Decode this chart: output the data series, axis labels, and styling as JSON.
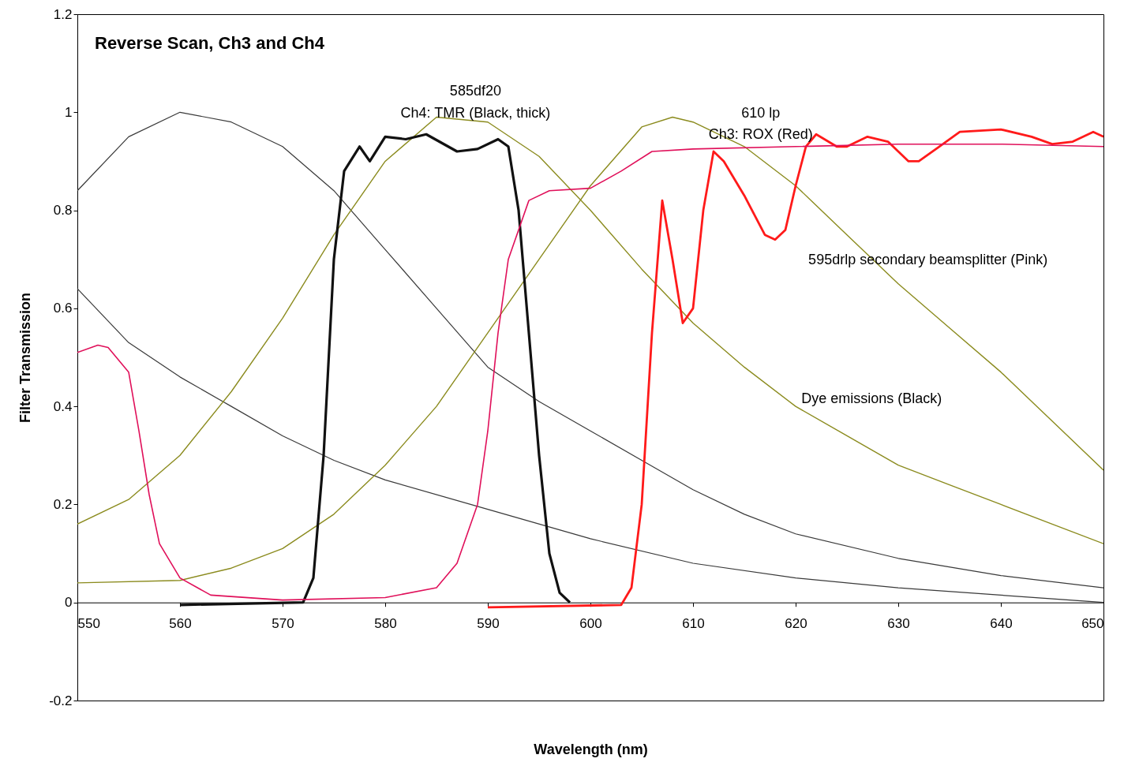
{
  "chart_data": {
    "type": "line",
    "title": "Reverse Scan, Ch3 and Ch4",
    "xlabel": "Wavelength (nm)",
    "ylabel": "Filter Transmission",
    "xlim": [
      550,
      650
    ],
    "ylim": [
      -0.2,
      1.2
    ],
    "xticks": [
      550,
      560,
      570,
      580,
      590,
      600,
      610,
      620,
      630,
      640,
      650
    ],
    "yticks": [
      -0.2,
      0,
      0.2,
      0.4,
      0.6,
      0.8,
      1,
      1.2
    ],
    "grid": false,
    "marker": "none",
    "line_style": "solid",
    "series": [
      {
        "color": "#3a3a3a",
        "x": [
          550,
          555,
          560,
          565,
          570,
          575,
          580,
          585,
          590,
          595,
          600,
          605,
          610,
          615,
          620,
          630,
          640,
          650
        ],
        "values": [
          0.84,
          0.95,
          1.0,
          0.98,
          0.93,
          0.84,
          0.72,
          0.6,
          0.48,
          0.41,
          0.35,
          0.29,
          0.23,
          0.18,
          0.14,
          0.09,
          0.055,
          0.03
        ]
      },
      {
        "color": "#3a3a3a",
        "x": [
          550,
          555,
          560,
          565,
          570,
          575,
          580,
          590,
          600,
          610,
          620,
          630,
          640,
          650
        ],
        "values": [
          0.64,
          0.53,
          0.46,
          0.4,
          0.34,
          0.29,
          0.25,
          0.19,
          0.13,
          0.08,
          0.05,
          0.03,
          0.015,
          0.0
        ]
      },
      {
        "color": "#8b8b1e",
        "x": [
          550,
          555,
          560,
          565,
          570,
          575,
          580,
          585,
          590,
          595,
          600,
          605,
          610,
          615,
          620,
          625,
          630,
          635,
          640,
          645,
          650
        ],
        "values": [
          0.16,
          0.21,
          0.3,
          0.43,
          0.58,
          0.75,
          0.9,
          0.99,
          0.98,
          0.91,
          0.8,
          0.68,
          0.57,
          0.48,
          0.4,
          0.34,
          0.28,
          0.24,
          0.2,
          0.16,
          0.12
        ]
      },
      {
        "color": "#8b8b1e",
        "x": [
          550,
          560,
          565,
          570,
          575,
          580,
          585,
          590,
          595,
          600,
          605,
          608,
          610,
          615,
          620,
          625,
          630,
          635,
          640,
          645,
          650
        ],
        "values": [
          0.04,
          0.045,
          0.07,
          0.11,
          0.18,
          0.28,
          0.4,
          0.55,
          0.7,
          0.85,
          0.97,
          0.99,
          0.98,
          0.93,
          0.85,
          0.75,
          0.65,
          0.56,
          0.47,
          0.37,
          0.27
        ]
      },
      {
        "color": "#111111",
        "x": [
          560,
          572,
          573,
          574,
          575,
          576,
          577.5,
          578.5,
          580,
          582,
          584,
          587,
          589,
          591,
          592,
          593,
          594,
          595,
          596,
          597,
          598
        ],
        "values": [
          -0.005,
          0.0,
          0.05,
          0.3,
          0.7,
          0.88,
          0.93,
          0.9,
          0.95,
          0.945,
          0.955,
          0.92,
          0.925,
          0.945,
          0.93,
          0.8,
          0.55,
          0.3,
          0.1,
          0.02,
          0.0
        ]
      },
      {
        "color": "#ff1a1a",
        "x": [
          590,
          603,
          604,
          605,
          606,
          607,
          608,
          609,
          610,
          611,
          612,
          613,
          615,
          617,
          618,
          619,
          620,
          621,
          622,
          624,
          625,
          627,
          629,
          631,
          632,
          634,
          636,
          640,
          643,
          645,
          647,
          649,
          650
        ],
        "values": [
          -0.01,
          -0.005,
          0.03,
          0.2,
          0.55,
          0.82,
          0.7,
          0.57,
          0.6,
          0.8,
          0.92,
          0.9,
          0.83,
          0.75,
          0.74,
          0.76,
          0.85,
          0.93,
          0.955,
          0.93,
          0.93,
          0.95,
          0.94,
          0.9,
          0.9,
          0.93,
          0.96,
          0.965,
          0.95,
          0.935,
          0.94,
          0.96,
          0.95
        ]
      },
      {
        "color": "#e0105a",
        "x": [
          550,
          552,
          553,
          555,
          556,
          557,
          558,
          560,
          563,
          570,
          580,
          585,
          587,
          589,
          590,
          591,
          592,
          594,
          596,
          600,
          603,
          606,
          610,
          620,
          630,
          640,
          650
        ],
        "values": [
          0.51,
          0.525,
          0.52,
          0.47,
          0.35,
          0.22,
          0.12,
          0.05,
          0.015,
          0.005,
          0.01,
          0.03,
          0.08,
          0.2,
          0.35,
          0.55,
          0.7,
          0.82,
          0.84,
          0.845,
          0.88,
          0.92,
          0.925,
          0.93,
          0.935,
          0.935,
          0.93
        ]
      }
    ],
    "annotations": [
      "585df20",
      "Ch4: TMR (Black, thick)",
      "610 lp",
      "Ch3: ROX (Red)",
      "595drlp secondary beamsplitter (Pink)",
      "Dye emissions (Black)"
    ]
  }
}
